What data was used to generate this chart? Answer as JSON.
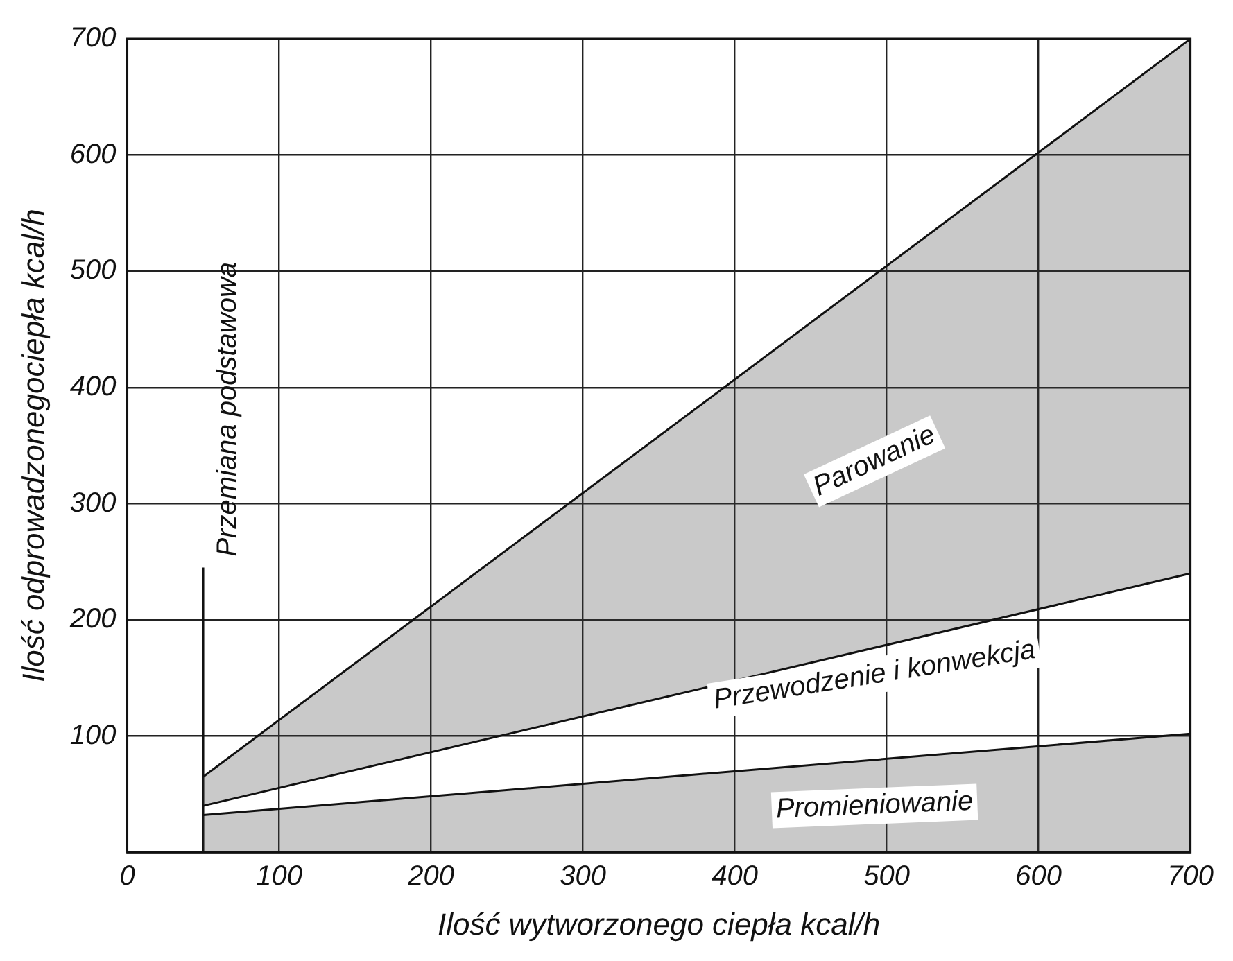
{
  "chart_data": {
    "type": "line",
    "xlabel": "Ilość wytworzonego ciepła kcal/h",
    "ylabel": "Ilość odprowadzonegociepła kcal/h",
    "xlim": [
      0,
      700
    ],
    "xticks": [
      0,
      100,
      200,
      300,
      400,
      500,
      600,
      700
    ],
    "ylim": [
      0,
      700
    ],
    "yticks": [
      {
        "value": 0,
        "label": null
      },
      100,
      200,
      300,
      400,
      500,
      600,
      700
    ],
    "grid": true,
    "legend": false,
    "marker": "none",
    "line_style": "solid",
    "x": [
      50,
      700
    ],
    "series": [
      {
        "type": "area",
        "name": "Promieniowanie",
        "color": "#111111",
        "values": [
          32,
          102
        ]
      },
      {
        "name": "Przewodzenie i konwekcja",
        "color": "#111111",
        "values": [
          40,
          240
        ]
      },
      {
        "type": "area",
        "name": "Parowanie",
        "color": "#111111",
        "values": [
          65,
          700
        ]
      },
      {
        "name": "Przemiana podstawowa",
        "color": "#111111",
        "x": [
          50,
          50
        ],
        "values": [
          0,
          245
        ]
      }
    ]
  }
}
